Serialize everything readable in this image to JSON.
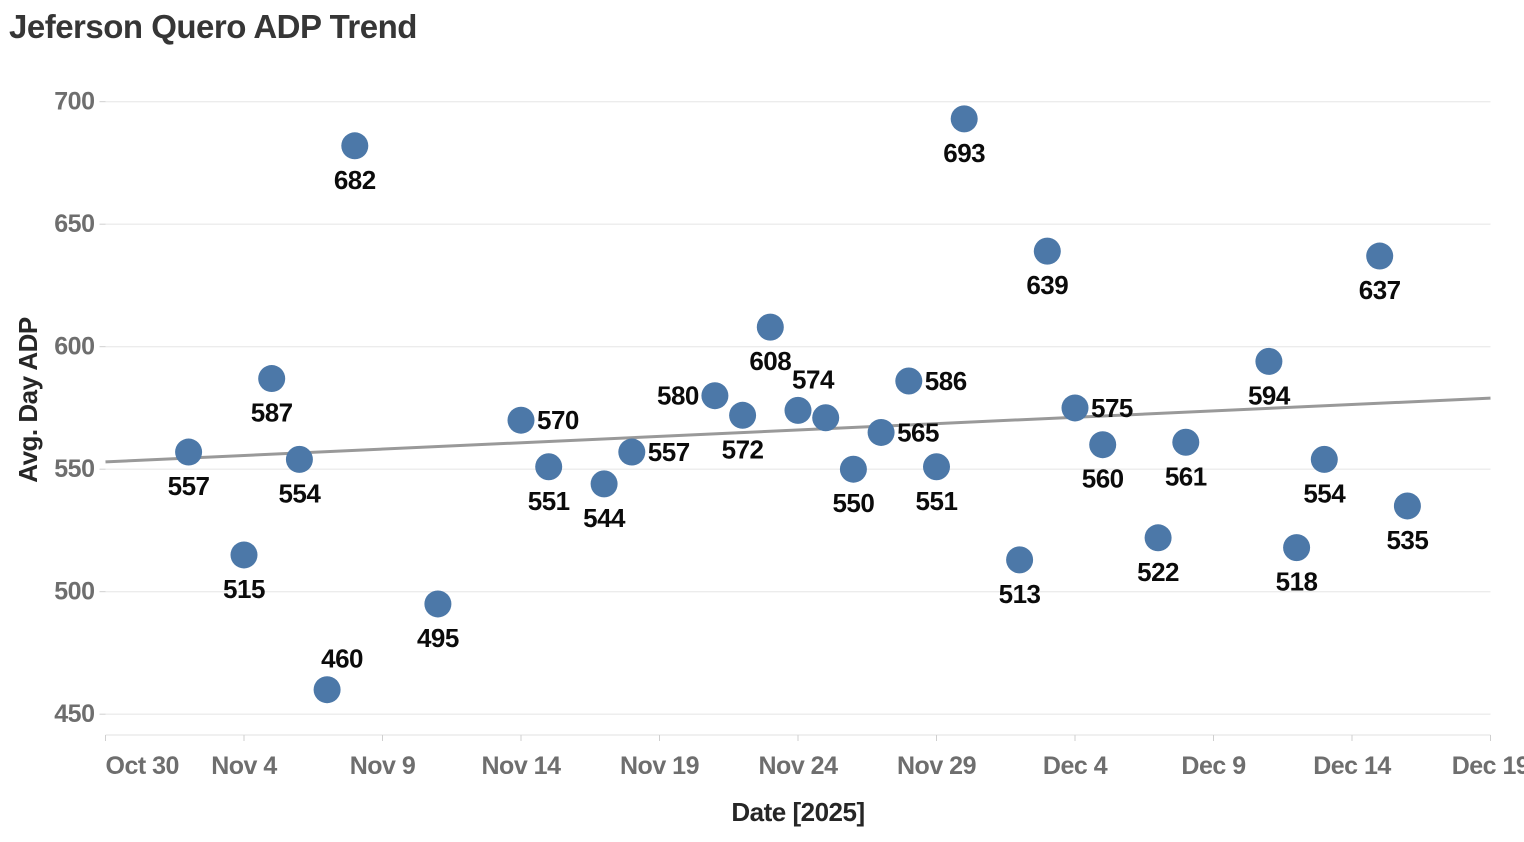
{
  "chart_data": {
    "type": "scatter",
    "title": "Jeferson Quero ADP Trend",
    "xlabel": "Date [2025]",
    "ylabel": "Avg. Day ADP",
    "x_tick_labels": [
      "Oct 30",
      "Nov 4",
      "Nov 9",
      "Nov 14",
      "Nov 19",
      "Nov 24",
      "Nov 29",
      "Dec 4",
      "Dec 9",
      "Dec 14",
      "Dec 19"
    ],
    "x_tick_days": [
      0,
      5,
      10,
      15,
      20,
      25,
      30,
      35,
      40,
      45,
      50
    ],
    "y_ticks": [
      450,
      500,
      550,
      600,
      650,
      700
    ],
    "xlim_days": [
      0,
      50
    ],
    "ylim": [
      441,
      707
    ],
    "grid": true,
    "legend": false,
    "point_color": "#4c78a8",
    "label_color": "#0b0b0b",
    "trend_line": {
      "color": "#999999",
      "start_value": 553,
      "end_value": 579
    },
    "points": [
      {
        "date": "Nov 2",
        "day": 3,
        "value": 557,
        "label": "557",
        "label_pos": "below"
      },
      {
        "date": "Nov 4",
        "day": 5,
        "value": 515,
        "label": "515",
        "label_pos": "below"
      },
      {
        "date": "Nov 5",
        "day": 6,
        "value": 587,
        "label": "587",
        "label_pos": "below"
      },
      {
        "date": "Nov 6",
        "day": 7,
        "value": 554,
        "label": "554",
        "label_pos": "below"
      },
      {
        "date": "Nov 7",
        "day": 8,
        "value": 460,
        "label": "460",
        "label_pos": "above"
      },
      {
        "date": "Nov 8",
        "day": 9,
        "value": 682,
        "label": "682",
        "label_pos": "below"
      },
      {
        "date": "Nov 11",
        "day": 12,
        "value": 495,
        "label": "495",
        "label_pos": "below"
      },
      {
        "date": "Nov 14",
        "day": 15,
        "value": 570,
        "label": "570",
        "label_pos": "right"
      },
      {
        "date": "Nov 15",
        "day": 16,
        "value": 551,
        "label": "551",
        "label_pos": "below"
      },
      {
        "date": "Nov 17",
        "day": 18,
        "value": 544,
        "label": "544",
        "label_pos": "below"
      },
      {
        "date": "Nov 18",
        "day": 19,
        "value": 557,
        "label": "557",
        "label_pos": "right"
      },
      {
        "date": "Nov 21",
        "day": 22,
        "value": 580,
        "label": "580",
        "label_pos": "left"
      },
      {
        "date": "Nov 22",
        "day": 23,
        "value": 572,
        "label": "572",
        "label_pos": "below"
      },
      {
        "date": "Nov 23",
        "day": 24,
        "value": 608,
        "label": "608",
        "label_pos": "below"
      },
      {
        "date": "Nov 24",
        "day": 25,
        "value": 574,
        "label": "574",
        "label_pos": "above"
      },
      {
        "date": "Nov 25",
        "day": 26,
        "value": 571,
        "label": "",
        "label_pos": "none"
      },
      {
        "date": "Nov 26",
        "day": 27,
        "value": 550,
        "label": "550",
        "label_pos": "below"
      },
      {
        "date": "Nov 27",
        "day": 28,
        "value": 565,
        "label": "565",
        "label_pos": "right"
      },
      {
        "date": "Nov 28",
        "day": 29,
        "value": 586,
        "label": "586",
        "label_pos": "right"
      },
      {
        "date": "Nov 29",
        "day": 30,
        "value": 551,
        "label": "551",
        "label_pos": "below"
      },
      {
        "date": "Nov 30",
        "day": 31,
        "value": 693,
        "label": "693",
        "label_pos": "below"
      },
      {
        "date": "Dec 2",
        "day": 33,
        "value": 513,
        "label": "513",
        "label_pos": "below"
      },
      {
        "date": "Dec 3",
        "day": 34,
        "value": 639,
        "label": "639",
        "label_pos": "below"
      },
      {
        "date": "Dec 4",
        "day": 35,
        "value": 575,
        "label": "575",
        "label_pos": "right"
      },
      {
        "date": "Dec 5",
        "day": 36,
        "value": 560,
        "label": "560",
        "label_pos": "below"
      },
      {
        "date": "Dec 7",
        "day": 38,
        "value": 522,
        "label": "522",
        "label_pos": "below"
      },
      {
        "date": "Dec 8",
        "day": 39,
        "value": 561,
        "label": "561",
        "label_pos": "below"
      },
      {
        "date": "Dec 11",
        "day": 42,
        "value": 594,
        "label": "594",
        "label_pos": "below"
      },
      {
        "date": "Dec 12",
        "day": 43,
        "value": 518,
        "label": "518",
        "label_pos": "below"
      },
      {
        "date": "Dec 13",
        "day": 44,
        "value": 554,
        "label": "554",
        "label_pos": "below"
      },
      {
        "date": "Dec 15",
        "day": 46,
        "value": 637,
        "label": "637",
        "label_pos": "below"
      },
      {
        "date": "Dec 16",
        "day": 47,
        "value": 535,
        "label": "535",
        "label_pos": "below"
      }
    ]
  }
}
